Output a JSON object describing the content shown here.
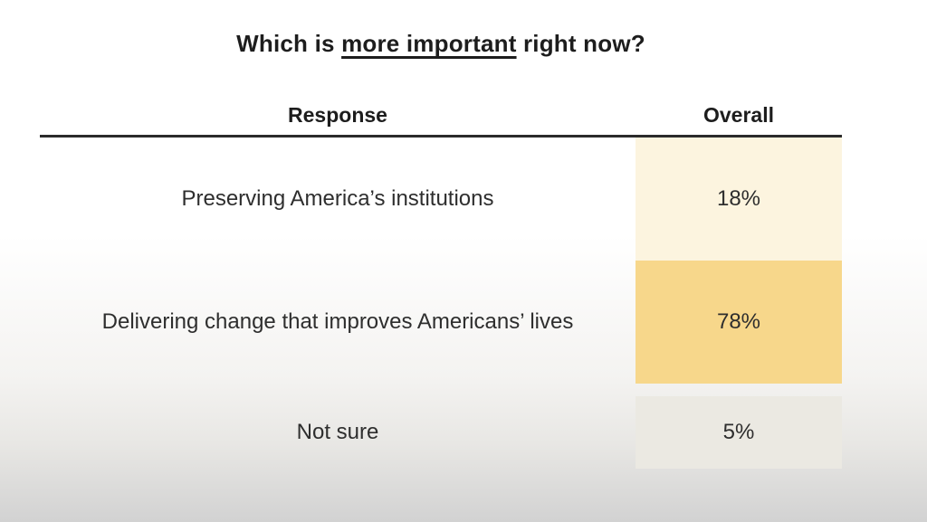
{
  "title": {
    "prefix": "Which is ",
    "underlined": "more important",
    "suffix": " right now?"
  },
  "table": {
    "header": {
      "response": "Response",
      "overall": "Overall"
    },
    "rows": [
      {
        "label": "Preserving America’s institutions",
        "value": "18%",
        "cell_color": "#fcf4df"
      },
      {
        "label": "Delivering change that improves Americans’ lives",
        "value": "78%",
        "cell_color": "#f7d78b"
      },
      {
        "label": "Not sure",
        "value": "5%",
        "cell_color": "#ebe9e2"
      }
    ]
  },
  "chart_data": {
    "type": "table",
    "title": "Which is more important right now?",
    "columns": [
      "Response",
      "Overall"
    ],
    "categories": [
      "Preserving America’s institutions",
      "Delivering change that improves Americans’ lives",
      "Not sure"
    ],
    "values": [
      18,
      78,
      5
    ],
    "value_unit": "percent",
    "layout_hints": "Overall cells shaded yellow; shade intensity reflects value; heavy rule under header; Not sure row separated by gap"
  },
  "colors": {
    "accent_strong": "#f7d78b",
    "accent_light": "#fcf4df",
    "neutral_cell": "#ebe9e2",
    "header_rule": "#2b2b2b",
    "text": "#2e2e2e",
    "title_text": "#1d1d1d"
  }
}
